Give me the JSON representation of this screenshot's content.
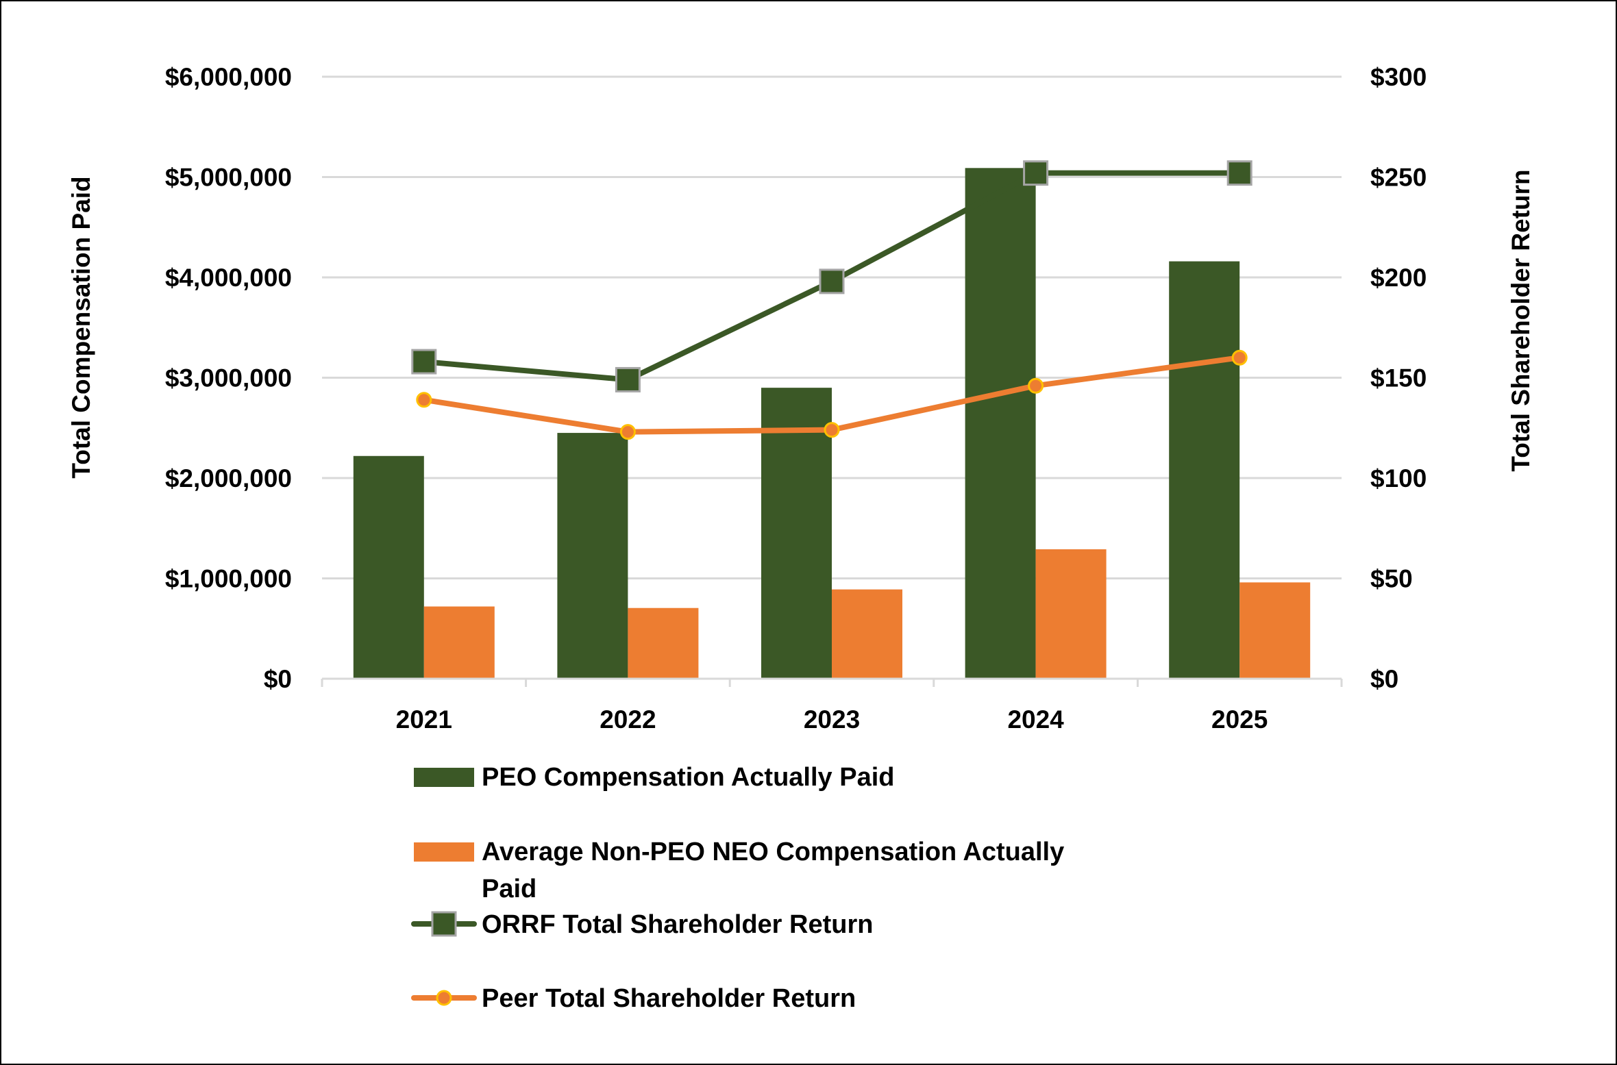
{
  "chart_data": {
    "type": "bar",
    "categories": [
      "2021",
      "2022",
      "2023",
      "2024",
      "2025"
    ],
    "series": [
      {
        "name": "PEO Compensation Actually Paid",
        "kind": "bar",
        "axis": "left",
        "color": "#3b5826",
        "values": [
          2220000,
          2450000,
          2900000,
          5090000,
          4160000
        ]
      },
      {
        "name": "Average Non-PEO NEO Compensation Actually Paid",
        "kind": "bar",
        "axis": "left",
        "color": "#ed7d31",
        "values": [
          720000,
          705000,
          890000,
          1290000,
          960000
        ]
      },
      {
        "name": "ORRF Total Shareholder Return",
        "kind": "line",
        "marker": "square",
        "axis": "right",
        "color": "#3b5826",
        "values": [
          158,
          149,
          198,
          252,
          252
        ]
      },
      {
        "name": "Peer Total Shareholder Return",
        "kind": "line",
        "marker": "circle",
        "axis": "right",
        "color": "#ed7d31",
        "values": [
          139,
          123,
          124,
          146,
          160
        ]
      }
    ],
    "ylabel": "Total Compensation Paid",
    "y2label": "Total Shareholder Return",
    "ylim": [
      0,
      6000000
    ],
    "y2lim": [
      0,
      300
    ],
    "yticks": [
      0,
      1000000,
      2000000,
      3000000,
      4000000,
      5000000,
      6000000
    ],
    "ytick_labels": [
      "$0",
      "$1,000,000",
      "$2,000,000",
      "$3,000,000",
      "$4,000,000",
      "$5,000,000",
      "$6,000,000"
    ],
    "y2ticks": [
      0,
      50,
      100,
      150,
      200,
      250,
      300
    ],
    "y2tick_labels": [
      "$0",
      "$50",
      "$100",
      "$150",
      "$200",
      "$250",
      "$300"
    ],
    "grid": true,
    "legend_position": "bottom",
    "legend_labels": [
      [
        "PEO Compensation Actually Paid"
      ],
      [
        "Average Non-PEO NEO Compensation Actually",
        "Paid"
      ],
      [
        "ORRF Total Shareholder Return"
      ],
      [
        "Peer Total Shareholder Return"
      ]
    ],
    "colors": {
      "grid": "#d9d9d9",
      "line_marker_edge": "#a5a5a5",
      "circle_marker_fill": "#ed7d31",
      "circle_marker_edge": "#ffc000"
    }
  }
}
